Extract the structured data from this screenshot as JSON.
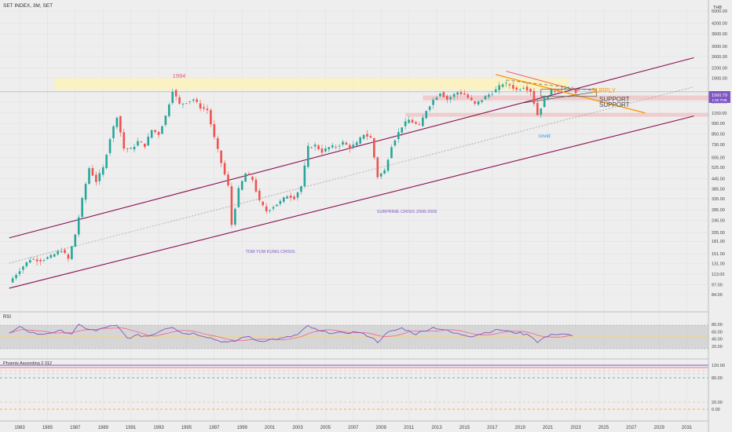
{
  "header": {
    "symbol": "SET INDEX, 3M, SET",
    "currency": "THB"
  },
  "colors": {
    "up": "#26a69a",
    "down": "#ef5350",
    "channel": "#880e4f",
    "supply_zone": "#fff3b0",
    "support_zone": "#f4b6b6",
    "rsi": "#7e57c2",
    "rsi_ma": "#f06292",
    "orange": "#ff9800",
    "price_label": "#7e57c2"
  },
  "price_axis": {
    "ticks": [
      "5000.00",
      "4200.00",
      "3600.00",
      "3000.00",
      "2600.00",
      "2200.00",
      "1900.00",
      "1350.00",
      "1150.00",
      "990.00",
      "850.00",
      "730.00",
      "605.00",
      "525.00",
      "445.00",
      "385.00",
      "335.00",
      "285.00",
      "245.00",
      "205.00",
      "181.00",
      "151.00",
      "131.00",
      "113.00",
      "97.00",
      "84.00"
    ],
    "last_price": "1560.79",
    "last_price_sub": "1.50 THB"
  },
  "time_axis": {
    "ticks": [
      "1983",
      "1985",
      "1987",
      "1989",
      "1991",
      "1993",
      "1995",
      "1997",
      "1999",
      "2001",
      "2003",
      "2005",
      "2007",
      "2009",
      "2011",
      "2013",
      "2015",
      "2017",
      "2019",
      "2021",
      "2023",
      "2025",
      "2027",
      "2029",
      "2031"
    ]
  },
  "annotations": {
    "peak_1994": "1994",
    "tom_yum": "TOM YUM KUNG CRISIS",
    "subprime": "SUBPRIME CRISIS 2008-2009",
    "covid": "covid",
    "supply": "SUPPLY",
    "support1": "SUPPORT",
    "support2": "SUPPORT"
  },
  "rsi_panel": {
    "title": "RSI",
    "ticks": [
      "80.00",
      "60.00",
      "40.00",
      "20.00"
    ]
  },
  "phoenix_panel": {
    "title": "Phoenix Ascending 2 312",
    "ticks": [
      "120.00",
      "80.00",
      "20.00",
      "0.00"
    ]
  },
  "chart_data": {
    "type": "candlestick",
    "scale": "log",
    "title": "SET INDEX, 3M, SET",
    "x_range": [
      1982,
      2032
    ],
    "y_range": [
      84,
      5000
    ],
    "series": [
      {
        "name": "SET INDEX",
        "points": [
          [
            1982.25,
            100
          ],
          [
            1983.0,
            120
          ],
          [
            1983.75,
            140
          ],
          [
            1984.5,
            138
          ],
          [
            1985.25,
            145
          ],
          [
            1986.0,
            160
          ],
          [
            1986.5,
            140
          ],
          [
            1987.0,
            200
          ],
          [
            1987.5,
            330
          ],
          [
            1988.0,
            520
          ],
          [
            1988.5,
            430
          ],
          [
            1989.0,
            520
          ],
          [
            1989.5,
            800
          ],
          [
            1990.0,
            1100
          ],
          [
            1990.5,
            690
          ],
          [
            1991.0,
            680
          ],
          [
            1991.5,
            760
          ],
          [
            1992.0,
            720
          ],
          [
            1992.5,
            900
          ],
          [
            1993.0,
            850
          ],
          [
            1993.5,
            1100
          ],
          [
            1994.0,
            1600
          ],
          [
            1994.5,
            1300
          ],
          [
            1995.0,
            1350
          ],
          [
            1995.5,
            1400
          ],
          [
            1996.0,
            1250
          ],
          [
            1996.5,
            1200
          ],
          [
            1997.0,
            800
          ],
          [
            1997.5,
            560
          ],
          [
            1998.0,
            400
          ],
          [
            1998.25,
            230
          ],
          [
            1998.75,
            380
          ],
          [
            1999.25,
            480
          ],
          [
            1999.75,
            440
          ],
          [
            2000.25,
            320
          ],
          [
            2000.75,
            280
          ],
          [
            2001.25,
            300
          ],
          [
            2001.75,
            320
          ],
          [
            2002.25,
            350
          ],
          [
            2002.75,
            340
          ],
          [
            2003.25,
            400
          ],
          [
            2003.75,
            700
          ],
          [
            2004.25,
            720
          ],
          [
            2004.75,
            660
          ],
          [
            2005.25,
            700
          ],
          [
            2005.75,
            710
          ],
          [
            2006.25,
            750
          ],
          [
            2006.75,
            700
          ],
          [
            2007.25,
            740
          ],
          [
            2007.75,
            850
          ],
          [
            2008.25,
            800
          ],
          [
            2008.75,
            460
          ],
          [
            2009.25,
            500
          ],
          [
            2009.75,
            720
          ],
          [
            2010.5,
            950
          ],
          [
            2011.0,
            1040
          ],
          [
            2011.75,
            950
          ],
          [
            2012.25,
            1200
          ],
          [
            2012.75,
            1390
          ],
          [
            2013.25,
            1550
          ],
          [
            2013.75,
            1400
          ],
          [
            2014.5,
            1550
          ],
          [
            2015.0,
            1500
          ],
          [
            2015.75,
            1300
          ],
          [
            2016.5,
            1450
          ],
          [
            2017.25,
            1600
          ],
          [
            2017.75,
            1760
          ],
          [
            2018.25,
            1720
          ],
          [
            2018.75,
            1600
          ],
          [
            2019.25,
            1680
          ],
          [
            2019.75,
            1580
          ],
          [
            2020.25,
            1120
          ],
          [
            2020.75,
            1400
          ],
          [
            2021.25,
            1580
          ],
          [
            2021.75,
            1620
          ],
          [
            2022.25,
            1640
          ],
          [
            2022.75,
            1600
          ],
          [
            2023.0,
            1560
          ]
        ]
      }
    ],
    "rsi_range": [
      0,
      100
    ],
    "rsi_series": [
      {
        "name": "RSI",
        "points": [
          [
            1982.25,
            55
          ],
          [
            1983.0,
            72
          ],
          [
            1983.75,
            60
          ],
          [
            1984.5,
            52
          ],
          [
            1985.25,
            58
          ],
          [
            1986.0,
            62
          ],
          [
            1986.75,
            55
          ],
          [
            1987.25,
            78
          ],
          [
            1987.75,
            70
          ],
          [
            1988.5,
            62
          ],
          [
            1989.25,
            74
          ],
          [
            1990.0,
            76
          ],
          [
            1990.75,
            42
          ],
          [
            1991.5,
            50
          ],
          [
            1992.25,
            48
          ],
          [
            1992.75,
            56
          ],
          [
            1993.5,
            70
          ],
          [
            1994.0,
            74
          ],
          [
            1994.75,
            55
          ],
          [
            1995.5,
            56
          ],
          [
            1996.5,
            46
          ],
          [
            1997.25,
            36
          ],
          [
            1998.0,
            30
          ],
          [
            1998.5,
            34
          ],
          [
            1999.25,
            48
          ],
          [
            2000.25,
            34
          ],
          [
            2001.0,
            38
          ],
          [
            2002.0,
            42
          ],
          [
            2003.0,
            52
          ],
          [
            2003.75,
            76
          ],
          [
            2004.5,
            62
          ],
          [
            2005.25,
            58
          ],
          [
            2006.25,
            56
          ],
          [
            2007.25,
            60
          ],
          [
            2008.25,
            46
          ],
          [
            2008.75,
            32
          ],
          [
            2009.5,
            58
          ],
          [
            2010.5,
            70
          ],
          [
            2011.5,
            54
          ],
          [
            2012.75,
            72
          ],
          [
            2013.5,
            66
          ],
          [
            2014.25,
            56
          ],
          [
            2015.5,
            48
          ],
          [
            2016.5,
            58
          ],
          [
            2017.5,
            66
          ],
          [
            2018.25,
            60
          ],
          [
            2019.0,
            56
          ],
          [
            2019.75,
            50
          ],
          [
            2020.25,
            32
          ],
          [
            2020.75,
            44
          ],
          [
            2021.5,
            54
          ],
          [
            2022.25,
            54
          ],
          [
            2022.75,
            48
          ]
        ]
      }
    ]
  }
}
